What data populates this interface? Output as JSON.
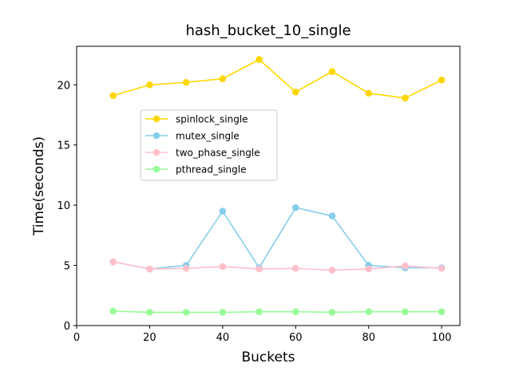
{
  "chart_data": {
    "type": "line",
    "title": "hash_bucket_10_single",
    "xlabel": "Buckets",
    "ylabel": "Time(seconds)",
    "xlim": [
      0,
      105
    ],
    "ylim": [
      0,
      23.2
    ],
    "xticks": [
      0,
      20,
      40,
      60,
      80,
      100
    ],
    "yticks": [
      0,
      5,
      10,
      15,
      20
    ],
    "grid": false,
    "legend_position": "center-left",
    "x": [
      10,
      20,
      30,
      40,
      50,
      60,
      70,
      80,
      90,
      100
    ],
    "series": [
      {
        "name": "spinlock_single",
        "color": "#FFD700",
        "values": [
          19.1,
          20.0,
          20.2,
          20.5,
          22.1,
          19.4,
          21.1,
          19.3,
          18.9,
          20.4
        ]
      },
      {
        "name": "mutex_single",
        "color": "#87CEEB",
        "values": [
          5.3,
          4.7,
          5.0,
          9.5,
          4.8,
          9.8,
          9.1,
          5.0,
          4.8,
          4.8
        ]
      },
      {
        "name": "two_phase_single",
        "color": "#FFC0CB",
        "values": [
          5.3,
          4.7,
          4.75,
          4.9,
          4.7,
          4.75,
          4.6,
          4.7,
          4.95,
          4.75
        ]
      },
      {
        "name": "pthread_single",
        "color": "#98FB98",
        "values": [
          1.2,
          1.1,
          1.1,
          1.1,
          1.15,
          1.15,
          1.1,
          1.15,
          1.15,
          1.15
        ]
      }
    ]
  }
}
